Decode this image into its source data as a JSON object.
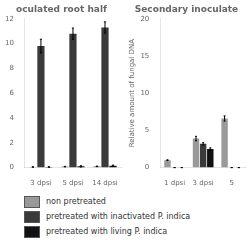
{
  "chart_data": [
    {
      "type": "bar",
      "title": "oculated root half",
      "categories": [
        "3 dpsi",
        "5 dpsi",
        "14 dpsi"
      ],
      "series": [
        {
          "name": "non pretreated",
          "color": "#999999",
          "values": [
            0.05,
            0.08,
            0.1
          ],
          "errors": [
            0.02,
            0.02,
            0.02
          ]
        },
        {
          "name": "pretreated with inactivated P. indica",
          "color": "#3a3a3a",
          "values": [
            9.8,
            10.8,
            11.3
          ],
          "errors": [
            0.55,
            0.45,
            0.45
          ]
        },
        {
          "name": "pretreated with living P. indica",
          "color": "#111111",
          "values": [
            0.05,
            0.1,
            0.15
          ],
          "errors": [
            0.02,
            0.05,
            0.05
          ]
        }
      ],
      "ylim": [
        0,
        12
      ],
      "yticks": [
        0,
        2,
        4,
        6,
        8,
        10,
        12
      ],
      "grid": false,
      "legend": "bottom"
    },
    {
      "type": "bar",
      "title": "Secondary inoculate",
      "ylabel": "Relative amount of fungal DNA",
      "categories": [
        "1 dpsi",
        "3 dpsi",
        "5"
      ],
      "series": [
        {
          "name": "non pretreated",
          "color": "#999999",
          "values": [
            1.0,
            3.9,
            6.6
          ],
          "errors": [
            0.05,
            0.3,
            0.35
          ]
        },
        {
          "name": "pretreated with inactivated P. indica",
          "color": "#3a3a3a",
          "values": [
            0.0,
            3.2,
            0.0
          ],
          "errors": [
            0.0,
            0.15,
            0.0
          ]
        },
        {
          "name": "pretreated with living P. indica",
          "color": "#111111",
          "values": [
            0.0,
            2.5,
            0.0
          ],
          "errors": [
            0.0,
            0.15,
            0.0
          ]
        }
      ],
      "ylim": [
        0,
        20
      ],
      "yticks": [
        0,
        5,
        10,
        15,
        20
      ],
      "grid": false
    }
  ]
}
